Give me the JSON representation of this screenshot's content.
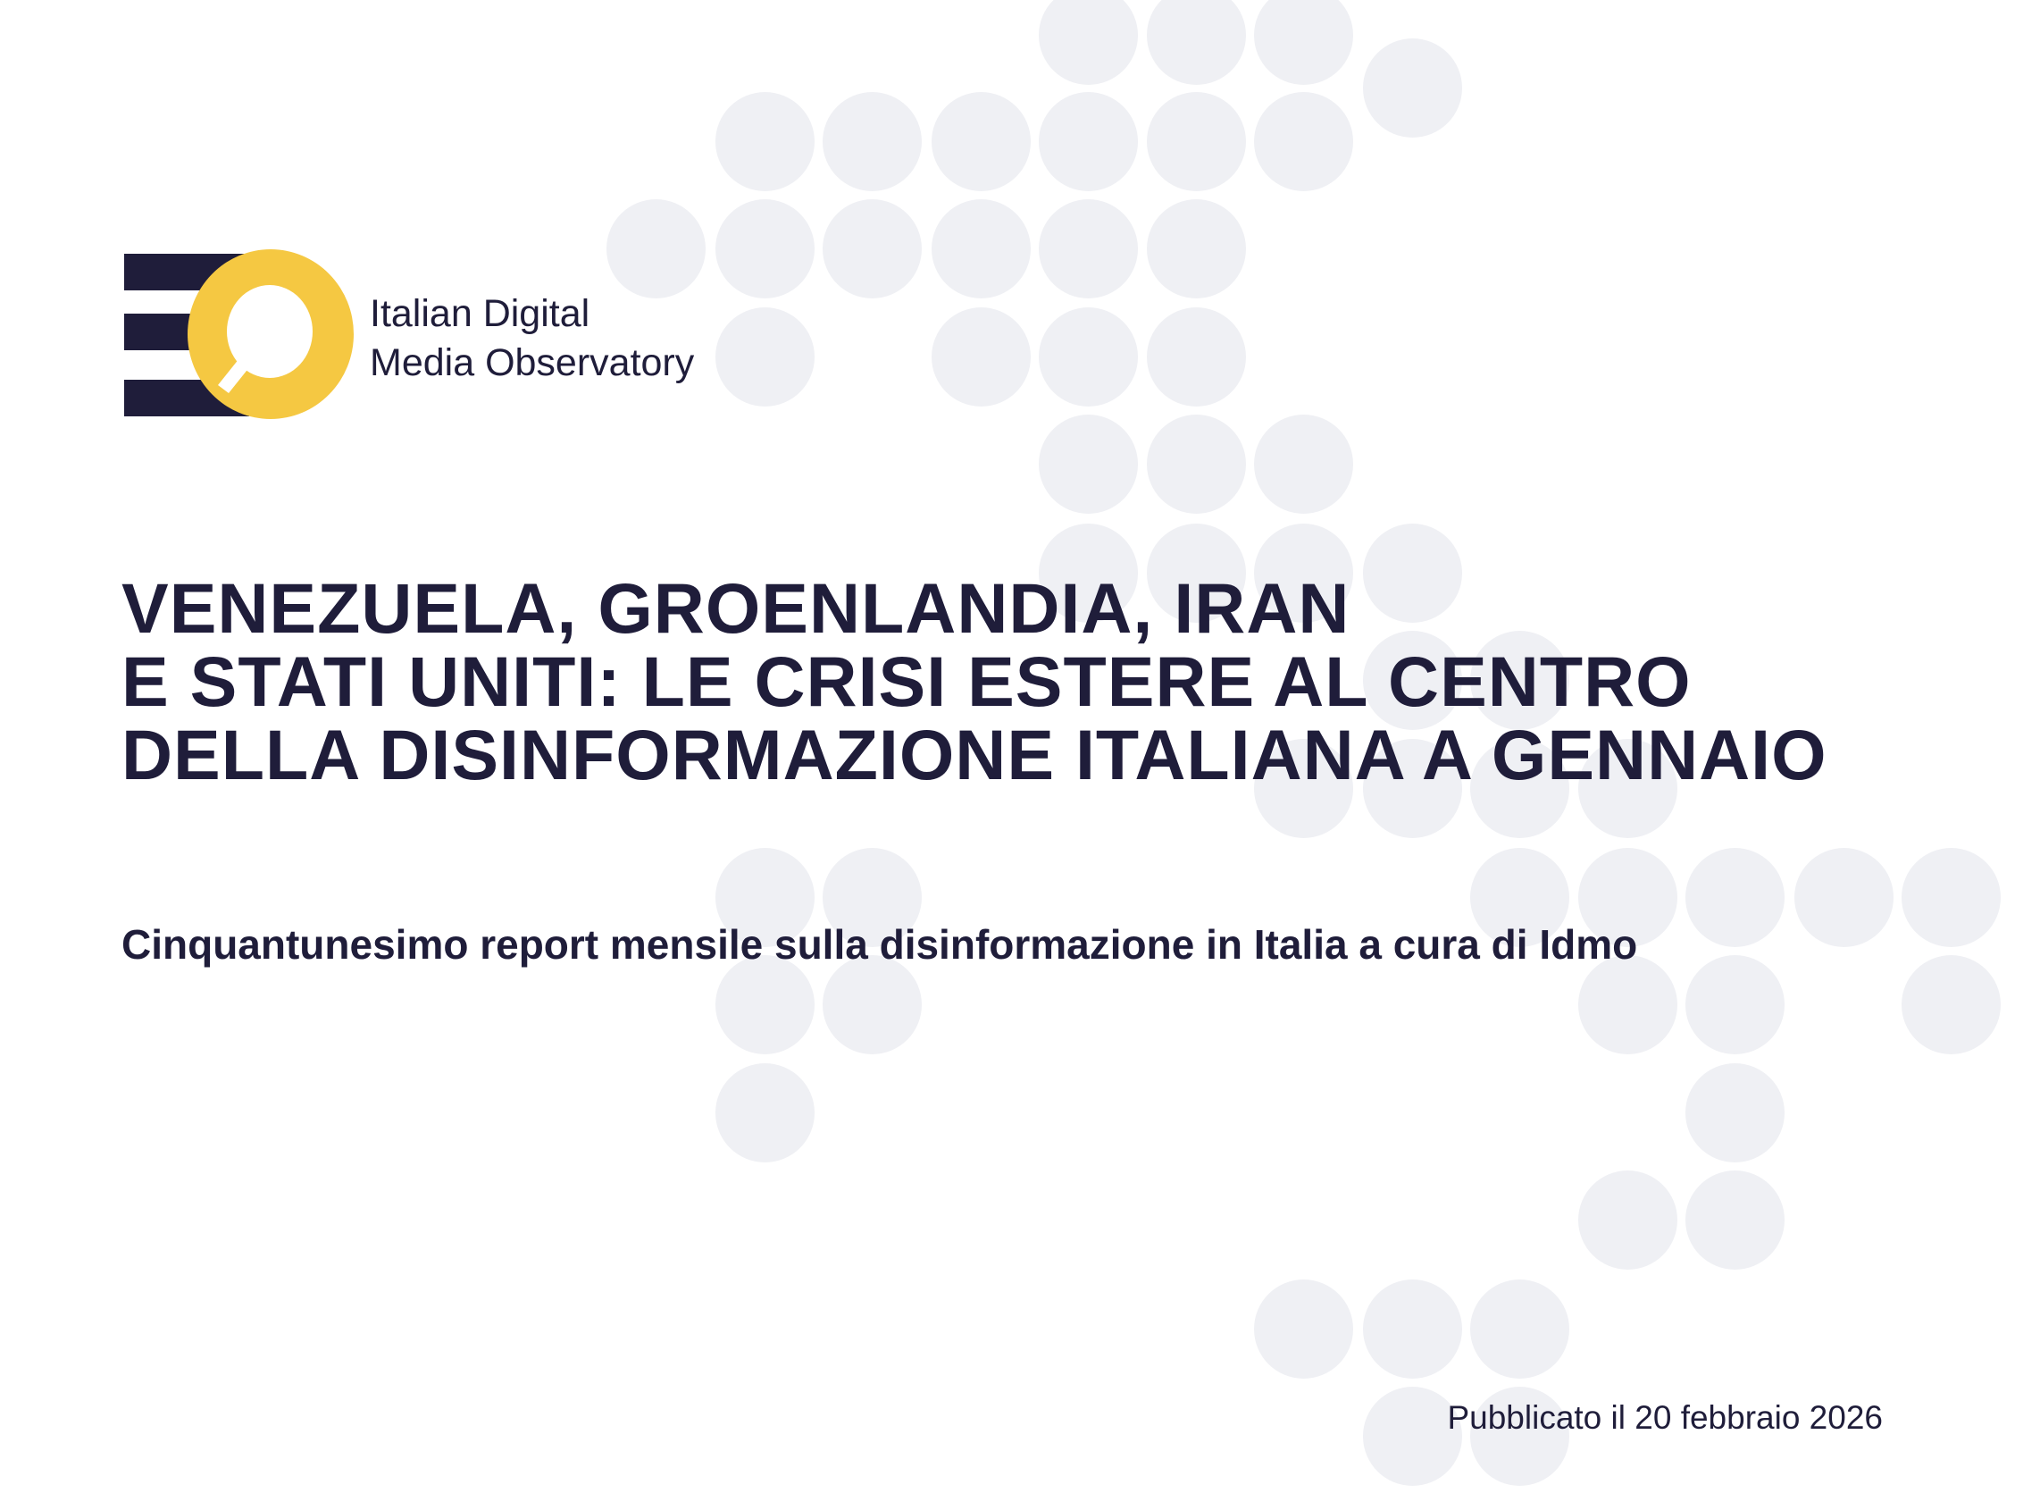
{
  "logo": {
    "line1": "Italian Digital",
    "line2": "Media Observatory",
    "colors": {
      "navy": "#1f1d3a",
      "yellow": "#f5c842"
    }
  },
  "title": {
    "lines": [
      "Venezuela, Groenlandia, Iran",
      "e Stati Uniti: le crisi estere al centro",
      "della disinformazione italiana a gennaio"
    ]
  },
  "subtitle": "Cinquantunesimo report mensile sulla disinformazione in Italia a cura di Idmo",
  "published": "Pubblicato il 20 febbraio 2026",
  "colors": {
    "text": "#1f1d3a",
    "dot": "#eff0f4",
    "background": "#ffffff"
  }
}
